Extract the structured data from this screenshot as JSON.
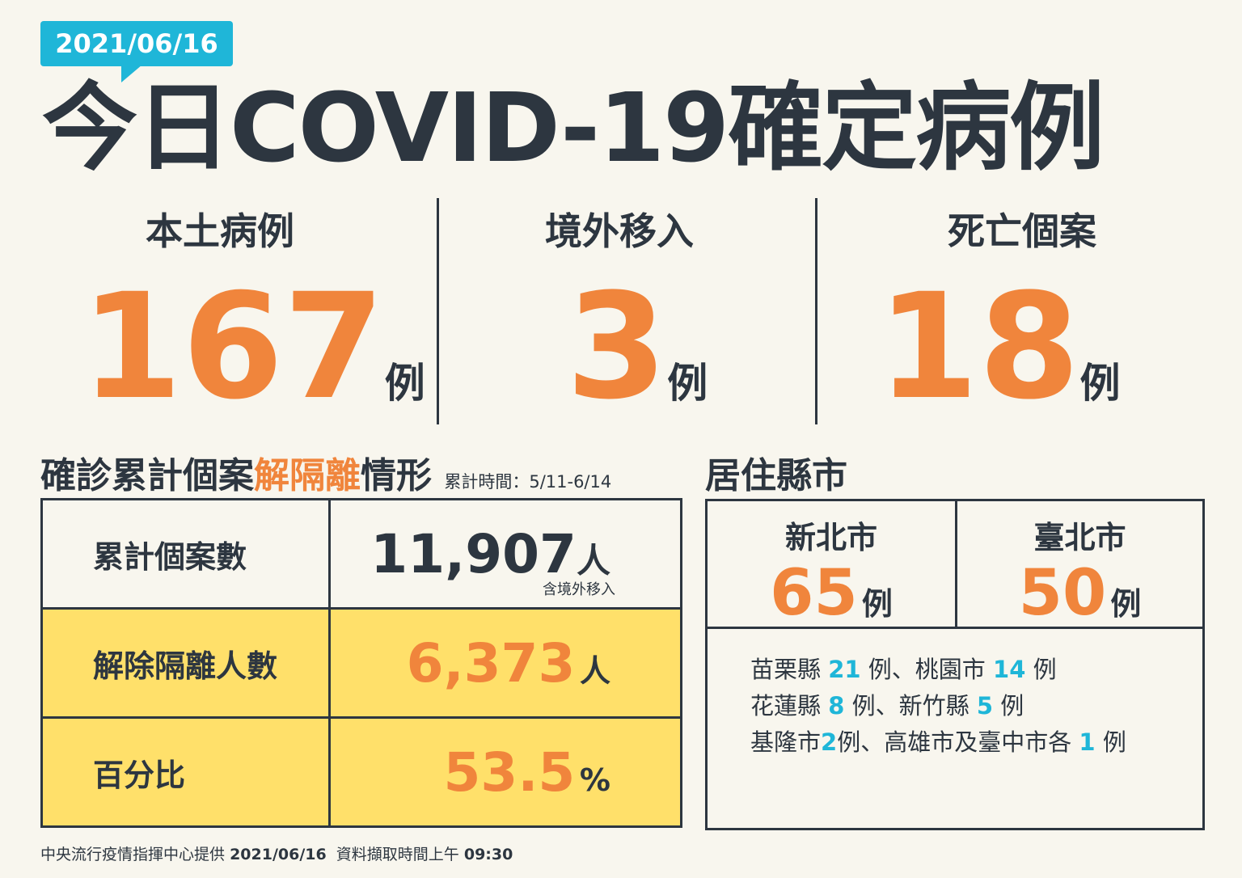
{
  "date": "2021/06/16",
  "title": "今日COVID-19確定病例",
  "stats": [
    {
      "label": "本土病例",
      "value": "167",
      "unit": "例"
    },
    {
      "label": "境外移入",
      "value": "3",
      "unit": "例"
    },
    {
      "label": "死亡個案",
      "value": "18",
      "unit": "例"
    }
  ],
  "recovery": {
    "title_pre": "確診累計個案",
    "title_highlight": "解隔離",
    "title_post": "情形",
    "period": "累計時間：5/11-6/14",
    "rows": [
      {
        "label": "累計個案數",
        "value": "11,907",
        "unit": "人",
        "note": "含境外移入"
      },
      {
        "label": "解除隔離人數",
        "value": "6,373",
        "unit": "人"
      },
      {
        "label": "百分比",
        "value": "53.5",
        "unit": "%"
      }
    ]
  },
  "cities": {
    "title": "居住縣市",
    "top": [
      {
        "name": "新北市",
        "value": "65",
        "unit": "例"
      },
      {
        "name": "臺北市",
        "value": "50",
        "unit": "例"
      }
    ],
    "others": [
      [
        {
          "t": "苗栗縣 "
        },
        {
          "n": "21"
        },
        {
          "t": " 例、桃園市 "
        },
        {
          "n": "14"
        },
        {
          "t": " 例"
        }
      ],
      [
        {
          "t": "花蓮縣 "
        },
        {
          "n": "8"
        },
        {
          "t": " 例、新竹縣 "
        },
        {
          "n": "5"
        },
        {
          "t": " 例"
        }
      ],
      [
        {
          "t": "基隆市"
        },
        {
          "n": "2"
        },
        {
          "t": "例、高雄市及臺中市各 "
        },
        {
          "n": "1"
        },
        {
          "t": " 例"
        }
      ]
    ]
  },
  "footer": {
    "source": "中央流行疫情指揮中心提供",
    "date": "2021/06/16",
    "time_label": "資料擷取時間上午",
    "time": "09:30"
  },
  "colors": {
    "accent": "#f0853c",
    "badge": "#1fb6d8",
    "highlight": "#ffe06a",
    "text": "#2d3640"
  }
}
